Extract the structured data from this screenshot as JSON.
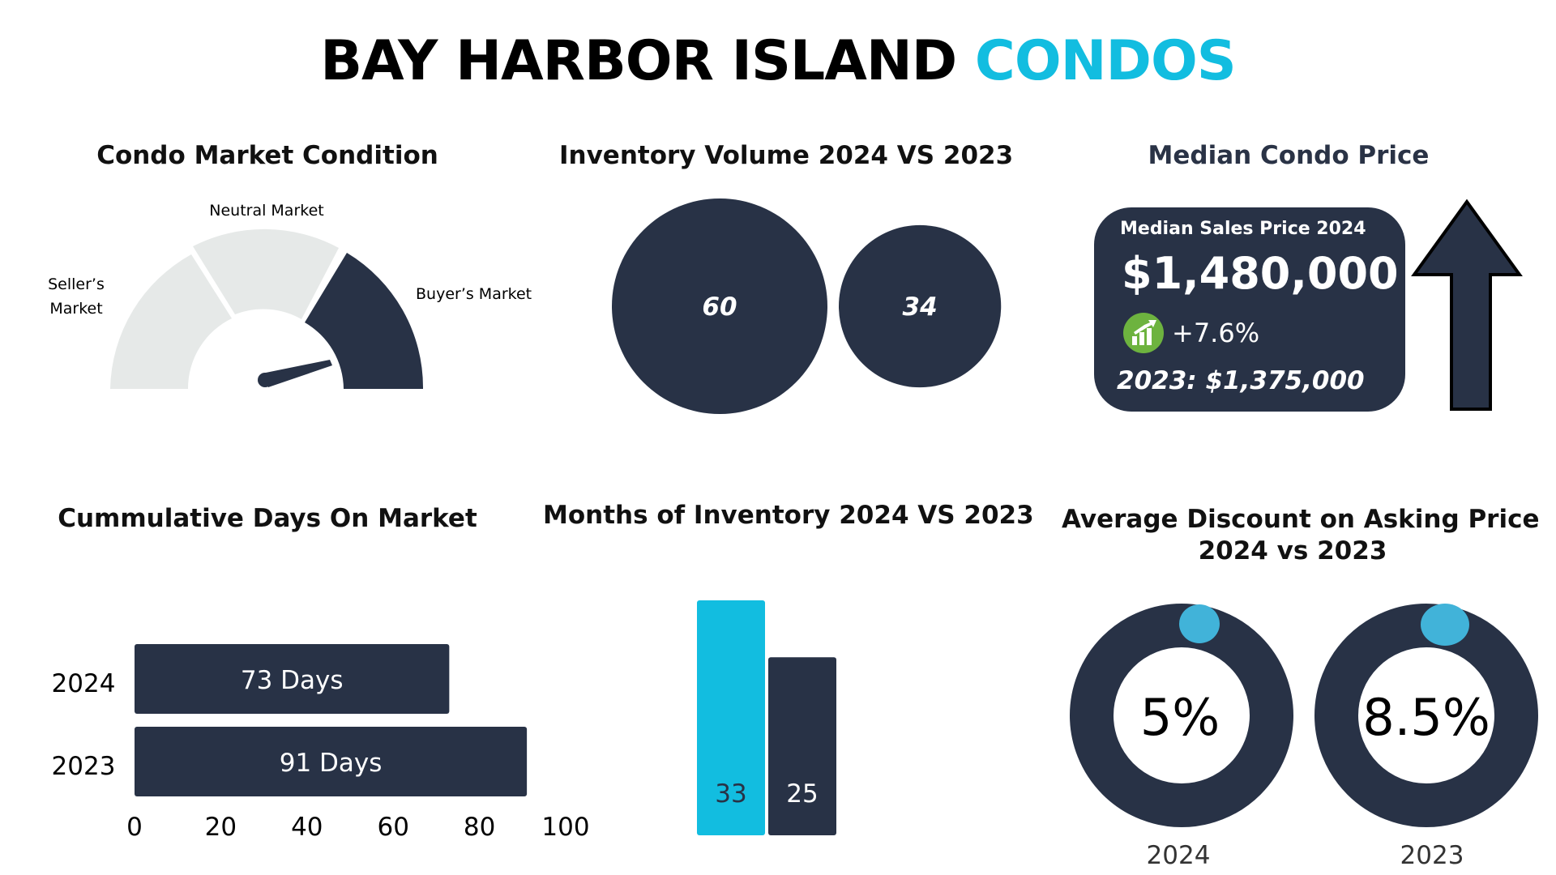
{
  "header": {
    "title_main": "BAY HARBOR ISLAND",
    "title_accent": "CONDOS"
  },
  "colors": {
    "navy": "#283246",
    "cyan": "#12bde0",
    "light_gray": "#e6e9e8",
    "dot_blue": "#41b3d9",
    "green": "#6db33f"
  },
  "market_condition": {
    "title": "Condo Market Condition",
    "segments": [
      "Seller’s Market",
      "Neutral Market",
      "Buyer’s Market"
    ],
    "seller_label_lines": [
      "Seller’s",
      "Market"
    ],
    "active_segment": "Buyer’s Market"
  },
  "inventory_volume": {
    "title": "Inventory Volume 2024 VS 2023",
    "chart_data": {
      "type": "bubble",
      "values": [
        60,
        34
      ]
    }
  },
  "median_price": {
    "title": "Median Condo Price",
    "card_label": "Median Sales Price 2024",
    "value": "$1,480,000",
    "change": "+7.6%",
    "previous": "2023: $1,375,000",
    "arrow_icon": "up-arrow-icon",
    "change_icon": "bar-chart-up-icon"
  },
  "days_on_market": {
    "title": "Cummulative Days On Market",
    "chart_data": {
      "type": "bar",
      "orientation": "horizontal",
      "categories": [
        "2024",
        "2023"
      ],
      "values": [
        73,
        91
      ],
      "data_labels": [
        "73 Days",
        "91 Days"
      ],
      "xlim": [
        0,
        100
      ],
      "xticks": [
        "0",
        "20",
        "40",
        "60",
        "80",
        "100"
      ]
    }
  },
  "months_inventory": {
    "title": "Months of Inventory 2024 VS 2023",
    "chart_data": {
      "type": "bar",
      "values": [
        33,
        25
      ],
      "data_labels": [
        "33",
        "25"
      ],
      "colors": [
        "#12bde0",
        "#283246"
      ]
    }
  },
  "avg_discount": {
    "title_lines": [
      "Average Discount on Asking Price",
      "2024 vs 2023"
    ],
    "chart_data": {
      "type": "donut",
      "categories": [
        "2024",
        "2023"
      ],
      "values": [
        5,
        8.5
      ],
      "data_labels": [
        "5%",
        "8.5%"
      ]
    }
  }
}
